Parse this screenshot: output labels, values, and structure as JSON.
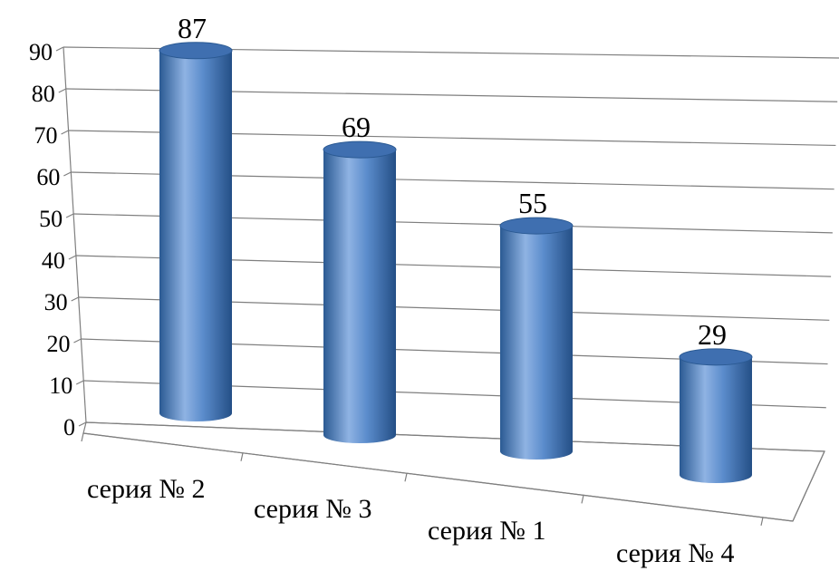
{
  "chart_data": {
    "type": "bar",
    "style": "3d-cylinder",
    "categories": [
      "серия № 2",
      "серия № 3",
      "серия № 1",
      "серия № 4"
    ],
    "values": [
      87,
      69,
      55,
      29
    ],
    "data_labels": [
      "87",
      "69",
      "55",
      "29"
    ],
    "ylim": [
      0,
      90
    ],
    "yticks": [
      "0",
      "10",
      "20",
      "30",
      "40",
      "50",
      "60",
      "70",
      "80",
      "90"
    ],
    "grid": true,
    "legend": "none",
    "colors": {
      "bar": "#4f81bd",
      "bar_dark": "#2b5a93",
      "bar_light": "#8fb3e3",
      "grid": "#7f7f7f"
    }
  }
}
